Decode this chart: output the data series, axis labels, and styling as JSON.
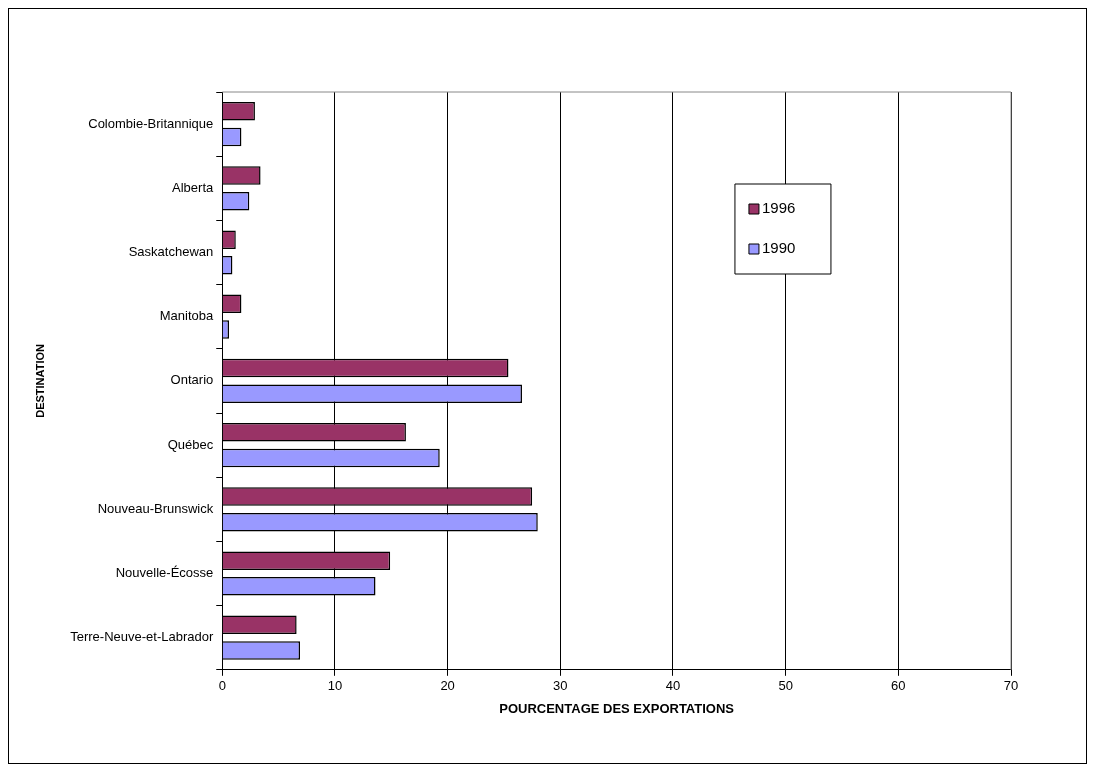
{
  "chart_data": {
    "type": "bar",
    "orientation": "horizontal",
    "xlabel": "POURCENTAGE DES EXPORTATIONS",
    "ylabel": "DESTINATION",
    "categories": [
      "Colombie-Britannique",
      "Alberta",
      "Saskatchewan",
      "Manitoba",
      "Ontario",
      "Québec",
      "Nouveau-Brunswick",
      "Nouvelle-Écosse",
      "Terre-Neuve-et-Labrador"
    ],
    "series": [
      {
        "name": "1996",
        "color": "#993366",
        "values": [
          2.9,
          3.4,
          1.2,
          1.7,
          25.4,
          16.3,
          27.5,
          14.9,
          6.6
        ]
      },
      {
        "name": "1990",
        "color": "#9999ff",
        "values": [
          1.7,
          2.4,
          0.9,
          0.6,
          26.6,
          19.3,
          28.0,
          13.6,
          6.9
        ]
      }
    ],
    "xlim": [
      0,
      70
    ],
    "xticks": [
      0,
      10,
      20,
      30,
      40,
      50,
      60,
      70
    ],
    "grid": "x",
    "legend": "top right"
  }
}
